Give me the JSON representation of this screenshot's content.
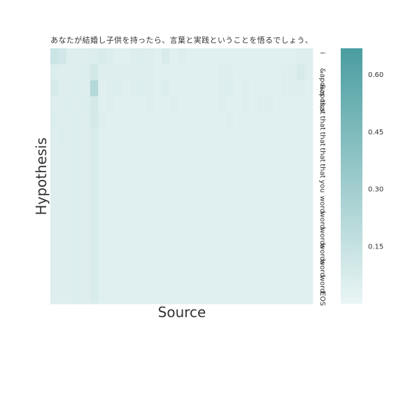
{
  "chart_data": {
    "type": "heatmap",
    "title": "",
    "xlabel": "Source",
    "ylabel": "Hypothesis",
    "x_tick_labels": [
      "あ",
      "な",
      "た",
      "が",
      "結",
      "婚",
      "し",
      "子",
      "供",
      "を",
      "持",
      "っ",
      "た",
      "ら",
      "、",
      "言",
      "葉",
      "と",
      "実",
      "践",
      "と",
      "い",
      "う",
      "こ",
      "と",
      "を",
      "悟",
      "る",
      "で",
      "し",
      "ょ",
      "う",
      "、"
    ],
    "y_tick_labels": [
      "i",
      "&apos;s",
      "&apos;s",
      "that",
      "that",
      "that",
      "that",
      "that",
      "you",
      "word",
      "word",
      "words",
      "words",
      "word",
      "word",
      "EOS"
    ],
    "colorbar": {
      "min": 0.0,
      "max": 0.67,
      "ticks": [
        0.15,
        0.3,
        0.45,
        0.6
      ],
      "tick_labels": [
        "0.15",
        "0.30",
        "0.45",
        "0.60"
      ]
    },
    "colors": {
      "low": "#eaf5f5",
      "high": "#4a9da0"
    },
    "grid": false,
    "values": [
      [
        0.13,
        0.1,
        0.05,
        0.05,
        0.05,
        0.06,
        0.07,
        0.06,
        0.04,
        0.04,
        0.05,
        0.06,
        0.05,
        0.04,
        0.07,
        0.04,
        0.05,
        0.04,
        0.04,
        0.04,
        0.04,
        0.04,
        0.04,
        0.04,
        0.04,
        0.04,
        0.04,
        0.04,
        0.04,
        0.04,
        0.04,
        0.05,
        0.05
      ],
      [
        0.06,
        0.05,
        0.05,
        0.05,
        0.06,
        0.1,
        0.05,
        0.05,
        0.05,
        0.05,
        0.05,
        0.05,
        0.05,
        0.04,
        0.04,
        0.04,
        0.04,
        0.04,
        0.04,
        0.04,
        0.04,
        0.05,
        0.05,
        0.04,
        0.04,
        0.04,
        0.04,
        0.04,
        0.04,
        0.05,
        0.05,
        0.08,
        0.05
      ],
      [
        0.08,
        0.05,
        0.05,
        0.06,
        0.05,
        0.22,
        0.04,
        0.05,
        0.06,
        0.04,
        0.05,
        0.06,
        0.05,
        0.04,
        0.06,
        0.04,
        0.04,
        0.04,
        0.04,
        0.04,
        0.04,
        0.05,
        0.06,
        0.04,
        0.05,
        0.04,
        0.04,
        0.04,
        0.04,
        0.05,
        0.05,
        0.05,
        0.04
      ],
      [
        0.05,
        0.05,
        0.06,
        0.05,
        0.06,
        0.09,
        0.04,
        0.05,
        0.04,
        0.04,
        0.04,
        0.04,
        0.05,
        0.04,
        0.04,
        0.05,
        0.04,
        0.04,
        0.04,
        0.04,
        0.04,
        0.05,
        0.04,
        0.04,
        0.05,
        0.04,
        0.05,
        0.05,
        0.04,
        0.04,
        0.04,
        0.04,
        0.04
      ],
      [
        0.06,
        0.05,
        0.05,
        0.06,
        0.05,
        0.09,
        0.05,
        0.04,
        0.04,
        0.04,
        0.04,
        0.04,
        0.04,
        0.04,
        0.04,
        0.04,
        0.04,
        0.04,
        0.04,
        0.04,
        0.04,
        0.04,
        0.05,
        0.04,
        0.04,
        0.04,
        0.04,
        0.04,
        0.04,
        0.04,
        0.04,
        0.04,
        0.04
      ],
      [
        0.05,
        0.06,
        0.05,
        0.06,
        0.05,
        0.07,
        0.04,
        0.04,
        0.04,
        0.04,
        0.04,
        0.04,
        0.04,
        0.04,
        0.04,
        0.04,
        0.04,
        0.04,
        0.04,
        0.04,
        0.04,
        0.04,
        0.04,
        0.04,
        0.04,
        0.04,
        0.04,
        0.04,
        0.04,
        0.04,
        0.04,
        0.04,
        0.04
      ],
      [
        0.05,
        0.05,
        0.05,
        0.06,
        0.05,
        0.07,
        0.04,
        0.04,
        0.04,
        0.04,
        0.04,
        0.04,
        0.04,
        0.04,
        0.04,
        0.04,
        0.04,
        0.04,
        0.04,
        0.04,
        0.04,
        0.04,
        0.04,
        0.04,
        0.04,
        0.04,
        0.04,
        0.04,
        0.04,
        0.04,
        0.04,
        0.04,
        0.04
      ],
      [
        0.05,
        0.05,
        0.05,
        0.06,
        0.05,
        0.07,
        0.04,
        0.04,
        0.04,
        0.04,
        0.04,
        0.04,
        0.04,
        0.04,
        0.04,
        0.04,
        0.04,
        0.04,
        0.04,
        0.04,
        0.04,
        0.04,
        0.04,
        0.04,
        0.04,
        0.04,
        0.04,
        0.04,
        0.04,
        0.04,
        0.04,
        0.04,
        0.04
      ],
      [
        0.05,
        0.05,
        0.05,
        0.06,
        0.05,
        0.07,
        0.04,
        0.04,
        0.04,
        0.04,
        0.04,
        0.04,
        0.04,
        0.04,
        0.04,
        0.04,
        0.04,
        0.04,
        0.04,
        0.04,
        0.04,
        0.04,
        0.04,
        0.04,
        0.04,
        0.04,
        0.04,
        0.04,
        0.04,
        0.04,
        0.04,
        0.04,
        0.04
      ],
      [
        0.05,
        0.05,
        0.05,
        0.06,
        0.05,
        0.07,
        0.04,
        0.04,
        0.04,
        0.04,
        0.04,
        0.04,
        0.04,
        0.04,
        0.04,
        0.04,
        0.04,
        0.04,
        0.04,
        0.04,
        0.04,
        0.04,
        0.04,
        0.04,
        0.04,
        0.04,
        0.04,
        0.04,
        0.04,
        0.04,
        0.04,
        0.04,
        0.04
      ],
      [
        0.05,
        0.05,
        0.05,
        0.06,
        0.05,
        0.07,
        0.04,
        0.04,
        0.04,
        0.04,
        0.04,
        0.04,
        0.04,
        0.04,
        0.04,
        0.04,
        0.04,
        0.04,
        0.04,
        0.04,
        0.04,
        0.04,
        0.04,
        0.04,
        0.04,
        0.04,
        0.04,
        0.04,
        0.04,
        0.04,
        0.04,
        0.04,
        0.04
      ],
      [
        0.05,
        0.05,
        0.05,
        0.06,
        0.05,
        0.07,
        0.04,
        0.04,
        0.04,
        0.04,
        0.04,
        0.04,
        0.04,
        0.04,
        0.04,
        0.04,
        0.04,
        0.04,
        0.04,
        0.04,
        0.04,
        0.04,
        0.04,
        0.04,
        0.04,
        0.04,
        0.04,
        0.04,
        0.04,
        0.04,
        0.04,
        0.04,
        0.04
      ],
      [
        0.05,
        0.05,
        0.05,
        0.06,
        0.05,
        0.07,
        0.04,
        0.04,
        0.04,
        0.04,
        0.04,
        0.04,
        0.04,
        0.04,
        0.04,
        0.04,
        0.04,
        0.04,
        0.04,
        0.04,
        0.04,
        0.04,
        0.04,
        0.04,
        0.04,
        0.04,
        0.04,
        0.04,
        0.04,
        0.04,
        0.04,
        0.04,
        0.04
      ],
      [
        0.05,
        0.05,
        0.05,
        0.06,
        0.05,
        0.07,
        0.04,
        0.04,
        0.04,
        0.04,
        0.04,
        0.04,
        0.04,
        0.04,
        0.04,
        0.04,
        0.04,
        0.04,
        0.04,
        0.04,
        0.04,
        0.04,
        0.04,
        0.04,
        0.04,
        0.04,
        0.04,
        0.04,
        0.04,
        0.04,
        0.04,
        0.04,
        0.04
      ],
      [
        0.05,
        0.05,
        0.05,
        0.06,
        0.05,
        0.07,
        0.04,
        0.04,
        0.04,
        0.04,
        0.04,
        0.04,
        0.04,
        0.04,
        0.04,
        0.04,
        0.04,
        0.04,
        0.04,
        0.04,
        0.04,
        0.04,
        0.04,
        0.04,
        0.04,
        0.04,
        0.04,
        0.04,
        0.04,
        0.04,
        0.04,
        0.04,
        0.04
      ],
      [
        0.05,
        0.05,
        0.05,
        0.06,
        0.05,
        0.07,
        0.04,
        0.04,
        0.04,
        0.04,
        0.04,
        0.04,
        0.04,
        0.04,
        0.04,
        0.04,
        0.04,
        0.04,
        0.04,
        0.04,
        0.04,
        0.04,
        0.04,
        0.04,
        0.04,
        0.04,
        0.04,
        0.04,
        0.04,
        0.04,
        0.04,
        0.04,
        0.04
      ]
    ]
  }
}
